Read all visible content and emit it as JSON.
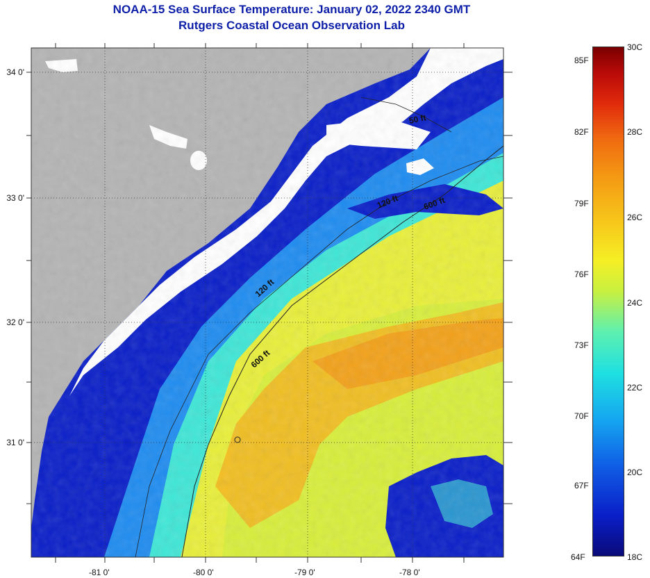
{
  "title": {
    "line1": "NOAA-15 Sea Surface Temperature:  January 02, 2022 2340 GMT",
    "line2": "Rutgers Coastal Ocean Observation Lab"
  },
  "map": {
    "lat_labels": [
      "34 0'",
      "33 0'",
      "32 0'",
      "31 0'"
    ],
    "lon_labels": [
      "-81 0'",
      "-80 0'",
      "-79 0'",
      "-78 0'"
    ],
    "contours": [
      "50 ft",
      "120 ft",
      "600 ft",
      "120 ft",
      "600 ft"
    ],
    "colors": {
      "land": "#b4b4b4",
      "cloud": "#ffffff",
      "coastal_cold": "#0a1fc8",
      "shelf": "#1f8cf0",
      "mid": "#3fe6d6",
      "warm": "#e8ef3a",
      "gulfstream": "#f5b51e"
    }
  },
  "colorbar": {
    "fahrenheit": [
      "85F",
      "82F",
      "79F",
      "76F",
      "73F",
      "70F",
      "67F",
      "64F"
    ],
    "celsius": [
      "30C",
      "28C",
      "26C",
      "24C",
      "22C",
      "20C",
      "18C"
    ]
  }
}
